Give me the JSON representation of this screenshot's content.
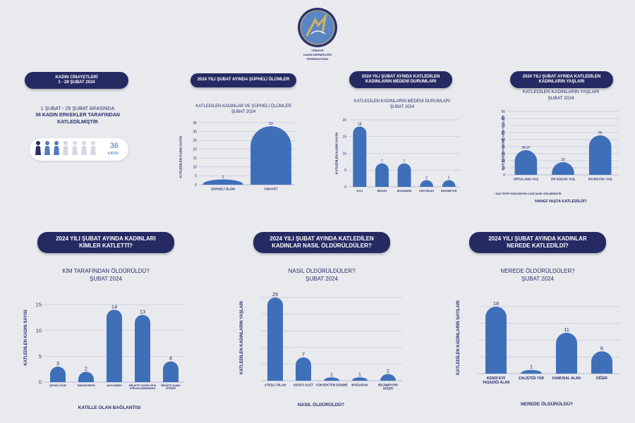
{
  "colors": {
    "bar": "#3f6fb8",
    "pill": "#252a63",
    "text": "#2a2f6b",
    "grid": "#a9adc8",
    "figure_dark": "#2a2f6b",
    "figure_mid": "#4f7cc2",
    "figure_light": "#d5d8e4"
  },
  "logo": {
    "line1": "TÜRKİYE",
    "line2": "KADIN DERNEKLERİ",
    "line3": "FEDERASYONU"
  },
  "summary": {
    "title": "KADIN CİNAYETLERİ\n1 - 29 ŞUBAT 2024",
    "line1": "1 ŞUBAT - 29 ŞUBAT ARASINDA",
    "line2": "36 KADIN ERKEKLER TARAFINDAN",
    "line3": "KATLEDİLMİŞTİR",
    "count": "36",
    "count_label": "KADIN"
  },
  "panels": {
    "p1": {
      "heading": "2024 YILI ŞUBAT AYINDA ŞÜPHELİ ÖLÜMLER",
      "title": "KATLEDİLEN KADINLAR VE ŞÜPHELİ ÖLÜMLER\nŞUBAT 2024",
      "ylabel": "KATLEDİLEN KADIN SAYISI"
    },
    "p2": {
      "heading": "2024 YILI ŞUBAT AYINDA KATLEDİLEN\nKADINLARIN MEDENİ DURUMLARI",
      "title": "KATLEDİLEN KADINLARIN MEDENİ DURUMLARI\nŞUBAT 2024",
      "ylabel": "KATLEDİLEN KADIN SAYISI"
    },
    "p3": {
      "heading": "2024 YILI ŞUBAT AYINDA KATLEDİLEN\nKADINLARIN YAŞLARI",
      "title": "KATLEDİLEN KADINLARIN YAŞLARI\nŞUBAT 2024",
      "ylabel": "KATLEDİLEN KADINLARIN YAŞLARI",
      "xlabel": "HANGİ YAŞTA KATLEDİLDİ?",
      "note": "• YAŞI TESPİT EDİLEMEYEN 3 KİŞİ DAHİL EDİLMEMİŞTİR."
    },
    "p4": {
      "heading": "2024 YILI ŞUBAT AYINDA KADINLARI\nKİMLER KATLETTİ?",
      "title": "KİM TARAFINDAN ÖLDÜRÜLDÜ?\nŞUBAT 2024",
      "ylabel": "KATLEDİLEN KADIN SAYISI",
      "xlabel": "KATİLLE OLAN BAĞLANTISI"
    },
    "p5": {
      "heading": "2024 YILI ŞUBAT AYINDA KATLEDİLEN\nKADINLAR NASIL ÖLDÜRÜLDÜLER?",
      "title": "NASIL ÖLDÜRÜLDÜLER?\nŞUBAT 2024",
      "ylabel": "KATLEDİLEN KADINLARIN YAŞLARI",
      "xlabel": "NASIL ÖLDÜRÜLDÜ?"
    },
    "p6": {
      "heading": "2024 YILI ŞUBAT AYINDA KADINLAR\nNEREDE KATLEDİLDİ?",
      "title": "NEREDE ÖLDÜRÜLDÜLER?\nŞUBAT 2024",
      "ylabel": "KATLEDİLEN KADINLARIN SAYILARI",
      "xlabel": "NEREDE ÖLDÜRÜLDÜ?"
    }
  },
  "chart_data": [
    {
      "type": "bar",
      "title": "KATLEDİLEN KADINLAR VE ŞÜPHELİ ÖLÜMLER ŞUBAT 2024",
      "ylabel": "KATLEDİLEN KADIN SAYISI",
      "categories": [
        "ŞÜPHELİ ÖLÜM",
        "CİNAYET"
      ],
      "values": [
        3,
        33
      ],
      "ylim": [
        0,
        35
      ],
      "yticks": [
        0,
        5,
        10,
        15,
        20,
        25,
        30,
        35
      ],
      "value_labels": [
        "3",
        "33"
      ],
      "grid": true
    },
    {
      "type": "bar",
      "title": "KATLEDİLEN KADINLARIN MEDENİ DURUMLARI ŞUBAT 2024",
      "ylabel": "KATLEDİLEN KADIN SAYISI",
      "categories": [
        "EVLİ",
        "BEKAR",
        "BOŞANMIŞ",
        "DİNİ NİKAH",
        "BİLİNMİYOR"
      ],
      "values": [
        18,
        7,
        7,
        2,
        2
      ],
      "ylim": [
        0,
        20
      ],
      "yticks": [
        0,
        5,
        10,
        15,
        20
      ],
      "value_labels": [
        "18",
        "7",
        "7",
        "2",
        "2"
      ],
      "grid": true
    },
    {
      "type": "bar",
      "title": "KATLEDİLEN KADINLARIN YAŞLARI ŞUBAT 2024",
      "ylabel": "KATLEDİLEN KADINLARIN YAŞLARI",
      "xlabel": "HANGİ YAŞTA KATLEDİLDİ?",
      "categories": [
        "ORTALAMA YAŞ",
        "EN KÜÇÜK YAŞ",
        "EN BÜYÜK YAŞ"
      ],
      "values": [
        34.97,
        18,
        56
      ],
      "ylim": [
        0,
        90
      ],
      "yticks": [
        0,
        10,
        20,
        30,
        40,
        50,
        60,
        70,
        80,
        90
      ],
      "value_labels": [
        "34,97",
        "18",
        "56"
      ],
      "grid": true
    },
    {
      "type": "bar",
      "title": "KİM TARAFINDAN ÖLDÜRÜLDÜ? ŞUBAT 2024",
      "ylabel": "KATLEDİLEN KADIN SAYISI",
      "xlabel": "KATİLLE OLAN BAĞLANTISI",
      "categories": [
        "ŞÜPHELİ ÖLÜM",
        "TANIDIĞI ERKEK",
        "AİLE İÇİNDEN",
        "BİRLİKTE OLDUĞU VEYA AYRILMA AŞAMASINDA",
        "BİRLİKTE OLMAK İSTEDİĞİ"
      ],
      "values": [
        3,
        2,
        14,
        13,
        4
      ],
      "ylim": [
        0,
        15
      ],
      "yticks": [
        0,
        5,
        10,
        15
      ],
      "value_labels": [
        "3",
        "2",
        "14",
        "13",
        "4"
      ],
      "grid": true
    },
    {
      "type": "bar",
      "title": "NASIL ÖLDÜRÜLDÜLER? ŞUBAT 2024",
      "ylabel": "KATLEDİLEN KADINLARIN YAŞLARI",
      "xlabel": "NASIL ÖLDÜRÜLDÜ?",
      "categories": [
        "ATEŞLİ SİLAH",
        "KESİCİ ALET",
        "YÜKSEKTEN DÜŞME",
        "BOĞARAK",
        "BİLİNMİYOR/ DİĞER"
      ],
      "values": [
        25,
        7,
        1,
        1,
        2
      ],
      "ylim": [
        0,
        25
      ],
      "yticks": [],
      "value_labels": [
        "25",
        "7",
        "1",
        "1",
        "2"
      ],
      "grid": true
    },
    {
      "type": "bar",
      "title": "NEREDE ÖLDÜRÜLDÜLER? ŞUBAT 2024",
      "ylabel": "KATLEDİLEN KADINLARIN SAYILARI",
      "xlabel": "NEREDE ÖLDÜRÜLDÜ?",
      "categories": [
        "KENDİ EVİ/ YAŞADIĞI ALAN",
        "ÇALIŞTIĞI YER",
        "KAMUSAL ALAN",
        "DİĞER"
      ],
      "values": [
        18,
        1,
        11,
        6
      ],
      "ylim": [
        0,
        18
      ],
      "yticks": [],
      "value_labels": [
        "18",
        "1",
        "11",
        "6"
      ],
      "grid": true
    }
  ]
}
